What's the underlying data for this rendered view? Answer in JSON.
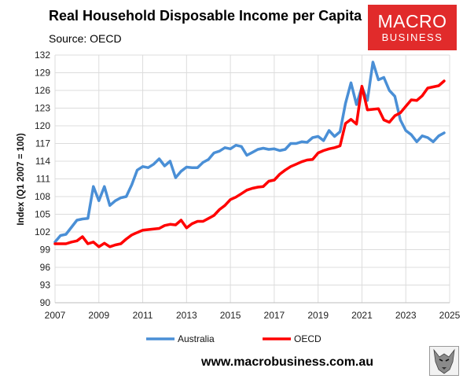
{
  "title": "Real Household Disposable Income per Capita",
  "subtitle": "Source: OECD",
  "logo": {
    "line1": "MACRO",
    "line2": "BUSINESS"
  },
  "footer_url": "www.macrobusiness.com.au",
  "chart_data": {
    "type": "line",
    "title": "Real Household Disposable Income per Capita",
    "ylabel": "Index (Q1 2007 = 100)",
    "xlabel": "",
    "xlim": [
      2007,
      2025
    ],
    "ylim": [
      90,
      132
    ],
    "yticks": [
      90,
      93,
      96,
      99,
      102,
      105,
      108,
      111,
      114,
      117,
      120,
      123,
      126,
      129,
      132
    ],
    "xticks": [
      2007,
      2009,
      2011,
      2013,
      2015,
      2017,
      2019,
      2021,
      2023,
      2025
    ],
    "grid": true,
    "legend": "bottom",
    "series": [
      {
        "name": "Australia",
        "color": "#4a8fd6",
        "x": [
          2007.0,
          2007.25,
          2007.5,
          2007.75,
          2008.0,
          2008.25,
          2008.5,
          2008.75,
          2009.0,
          2009.25,
          2009.5,
          2009.75,
          2010.0,
          2010.25,
          2010.5,
          2010.75,
          2011.0,
          2011.25,
          2011.5,
          2011.75,
          2012.0,
          2012.25,
          2012.5,
          2012.75,
          2013.0,
          2013.25,
          2013.5,
          2013.75,
          2014.0,
          2014.25,
          2014.5,
          2014.75,
          2015.0,
          2015.25,
          2015.5,
          2015.75,
          2016.0,
          2016.25,
          2016.5,
          2016.75,
          2017.0,
          2017.25,
          2017.5,
          2017.75,
          2018.0,
          2018.25,
          2018.5,
          2018.75,
          2019.0,
          2019.25,
          2019.5,
          2019.75,
          2020.0,
          2020.25,
          2020.5,
          2020.75,
          2021.0,
          2021.25,
          2021.5,
          2021.75,
          2022.0,
          2022.25,
          2022.5,
          2022.75,
          2023.0,
          2023.25,
          2023.5,
          2023.75,
          2024.0,
          2024.25,
          2024.5,
          2024.75
        ],
        "values": [
          100.3,
          101.4,
          101.6,
          102.8,
          104.0,
          104.2,
          104.3,
          109.7,
          107.3,
          109.7,
          106.5,
          107.3,
          107.8,
          108.0,
          110.0,
          112.5,
          113.1,
          112.9,
          113.5,
          114.4,
          113.2,
          114.0,
          111.2,
          112.3,
          113.0,
          112.9,
          112.9,
          113.8,
          114.3,
          115.4,
          115.7,
          116.3,
          116.1,
          116.7,
          116.5,
          115.0,
          115.5,
          116.0,
          116.2,
          116.0,
          116.1,
          115.8,
          116.0,
          117.0,
          117.0,
          117.3,
          117.2,
          118.0,
          118.2,
          117.5,
          119.2,
          118.2,
          119.0,
          123.8,
          127.3,
          123.6,
          126.6,
          124.3,
          130.8,
          127.8,
          128.2,
          126.0,
          125.0,
          121.0,
          119.2,
          118.5,
          117.3,
          118.3,
          118.0,
          117.3,
          118.3,
          118.8
        ]
      },
      {
        "name": "OECD",
        "color": "#ff0000",
        "x": [
          2007.0,
          2007.25,
          2007.5,
          2007.75,
          2008.0,
          2008.25,
          2008.5,
          2008.75,
          2009.0,
          2009.25,
          2009.5,
          2009.75,
          2010.0,
          2010.25,
          2010.5,
          2010.75,
          2011.0,
          2011.25,
          2011.5,
          2011.75,
          2012.0,
          2012.25,
          2012.5,
          2012.75,
          2013.0,
          2013.25,
          2013.5,
          2013.75,
          2014.0,
          2014.25,
          2014.5,
          2014.75,
          2015.0,
          2015.25,
          2015.5,
          2015.75,
          2016.0,
          2016.25,
          2016.5,
          2016.75,
          2017.0,
          2017.25,
          2017.5,
          2017.75,
          2018.0,
          2018.25,
          2018.5,
          2018.75,
          2019.0,
          2019.25,
          2019.5,
          2019.75,
          2020.0,
          2020.25,
          2020.5,
          2020.75,
          2021.0,
          2021.25,
          2021.5,
          2021.75,
          2022.0,
          2022.25,
          2022.5,
          2022.75,
          2023.0,
          2023.25,
          2023.5,
          2023.75,
          2024.0,
          2024.25,
          2024.5,
          2024.75
        ],
        "values": [
          100.0,
          100.0,
          100.0,
          100.3,
          100.5,
          101.2,
          100.0,
          100.3,
          99.5,
          100.1,
          99.5,
          99.8,
          100.0,
          100.8,
          101.5,
          101.9,
          102.3,
          102.4,
          102.5,
          102.6,
          103.1,
          103.3,
          103.2,
          104.0,
          102.7,
          103.4,
          103.8,
          103.8,
          104.3,
          104.8,
          105.8,
          106.5,
          107.5,
          107.9,
          108.5,
          109.1,
          109.4,
          109.6,
          109.7,
          110.6,
          110.8,
          111.8,
          112.5,
          113.1,
          113.5,
          113.9,
          114.2,
          114.3,
          115.4,
          115.8,
          116.1,
          116.3,
          116.6,
          120.4,
          121.1,
          120.3,
          126.7,
          122.7,
          122.8,
          122.9,
          121.0,
          120.6,
          121.7,
          122.2,
          123.3,
          124.4,
          124.3,
          125.1,
          126.4,
          126.6,
          126.8,
          127.6
        ]
      }
    ]
  }
}
